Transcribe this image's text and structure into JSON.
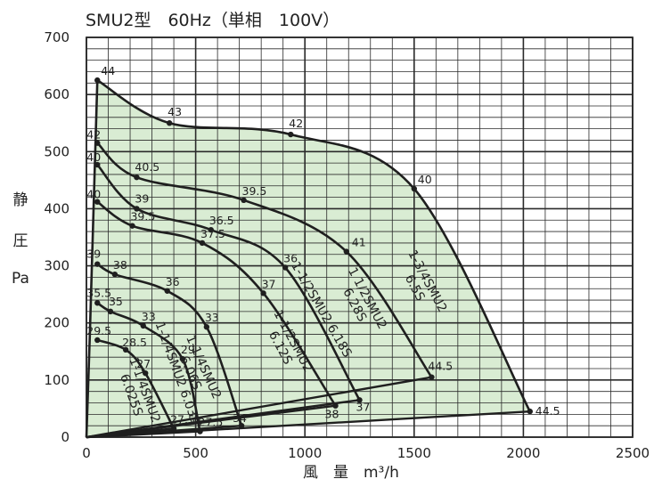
{
  "title": "SMU2型　60Hz（単相　100V）",
  "y_label_lines": [
    "静",
    "圧",
    "Pa"
  ],
  "x_label": "風　量　m³/h",
  "colors": {
    "fill": "#d9ecd3",
    "line": "#1f1f1f",
    "grid": "#2a2a2a"
  },
  "chart_data": {
    "type": "line",
    "title": "SMU2型　60Hz（単相　100V）",
    "xlabel": "風　量　m³/h",
    "ylabel": "静圧 Pa",
    "xlim": [
      0,
      2500
    ],
    "ylim": [
      0,
      700
    ],
    "x_ticks": [
      0,
      500,
      1000,
      1500,
      2000,
      2500
    ],
    "y_ticks": [
      0,
      100,
      200,
      300,
      400,
      500,
      600,
      700
    ],
    "series": [
      {
        "name": "1-3/4SMU2 6.5S",
        "points": [
          [
            50,
            625
          ],
          [
            380,
            550
          ],
          [
            935,
            530
          ],
          [
            1500,
            435
          ],
          [
            2030,
            45
          ]
        ],
        "labels": [
          "44",
          "43",
          "42",
          "40",
          "44.5"
        ]
      },
      {
        "name": "1-1/2SMU2 6.28S",
        "points": [
          [
            50,
            515
          ],
          [
            230,
            455
          ],
          [
            720,
            415
          ],
          [
            1190,
            325
          ],
          [
            1580,
            105
          ]
        ],
        "labels": [
          "42",
          "40.5",
          "39.5",
          "41",
          "44.5"
        ]
      },
      {
        "name": "1-1/2SMU2 6.18S",
        "points": [
          [
            50,
            477
          ],
          [
            230,
            400
          ],
          [
            570,
            363
          ],
          [
            910,
            297
          ],
          [
            1250,
            65
          ]
        ],
        "labels": [
          "40",
          "39",
          "36.5",
          "36",
          "37"
        ]
      },
      {
        "name": "1-1/2SMU2 6.12S",
        "points": [
          [
            50,
            412
          ],
          [
            210,
            370
          ],
          [
            530,
            340
          ],
          [
            810,
            252
          ],
          [
            1140,
            55
          ]
        ],
        "labels": [
          "40",
          "39.5",
          "37.5",
          "37",
          "38"
        ]
      },
      {
        "name": "1-1/4SMU2 6.06S",
        "points": [
          [
            50,
            303
          ],
          [
            130,
            285
          ],
          [
            370,
            256
          ],
          [
            550,
            193
          ],
          [
            710,
            20
          ]
        ],
        "labels": [
          "39",
          "38",
          "36",
          "33",
          "34"
        ]
      },
      {
        "name": "1-1/4SMU2 6.03S",
        "points": [
          [
            50,
            235
          ],
          [
            110,
            220
          ],
          [
            260,
            195
          ],
          [
            440,
            137
          ],
          [
            520,
            10
          ]
        ],
        "labels": [
          "35.5",
          "35",
          "33",
          "29",
          "27.5"
        ]
      },
      {
        "name": "1-1/4SMU2 6.025S",
        "points": [
          [
            50,
            170
          ],
          [
            180,
            153
          ],
          [
            270,
            112
          ],
          [
            400,
            15
          ]
        ],
        "labels": [
          "29.5",
          "28.5",
          "27",
          "27.5"
        ]
      }
    ],
    "curve_labels": [
      {
        "lines": [
          "1-3/4SMU2",
          "6.5S"
        ]
      },
      {
        "lines": [
          "1 1/2SMU2",
          "6.28S"
        ]
      },
      {
        "lines": [
          "1-1/2SMU2 6.18S"
        ]
      },
      {
        "lines": [
          "1-1/2SMU2",
          "6.12S"
        ]
      },
      {
        "lines": [
          "1-1/4SMU2",
          "6.06S"
        ]
      },
      {
        "lines": [
          "1-1/4SMU2 6.03S"
        ]
      },
      {
        "lines": [
          "1-1/4SMU2",
          "6.025S"
        ]
      }
    ]
  }
}
